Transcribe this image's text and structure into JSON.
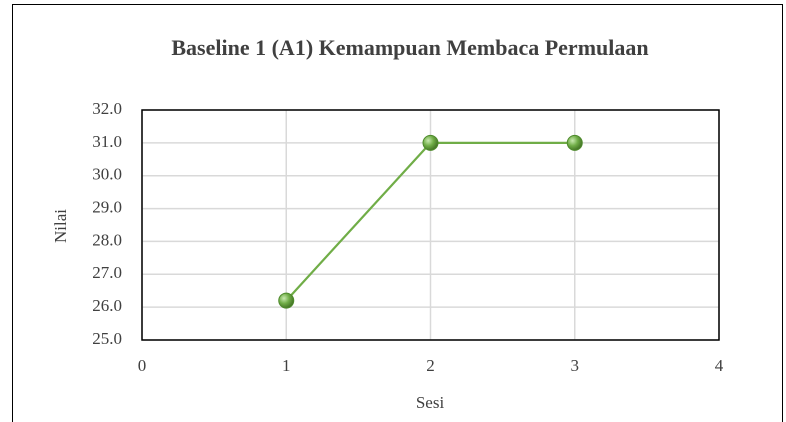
{
  "chart_data": {
    "type": "line",
    "title": "Baseline 1 (A1) Kemampuan Membaca Permulaan",
    "x": [
      1,
      2,
      3
    ],
    "values": [
      26.2,
      31.0,
      31.0
    ],
    "color": "#70ad47",
    "xlabel": "Sesi",
    "ylabel": "Nilai",
    "xlim": [
      0,
      4
    ],
    "xticks": [
      0,
      1,
      2,
      3,
      4
    ],
    "ylim": [
      25,
      32
    ],
    "yticks": [
      {
        "value": 25,
        "label": "25.0"
      },
      {
        "value": 26,
        "label": "26.0"
      },
      {
        "value": 27,
        "label": "27.0"
      },
      {
        "value": 28,
        "label": "28.0"
      },
      {
        "value": 29,
        "label": "29.0"
      },
      {
        "value": 30,
        "label": "30.0"
      },
      {
        "value": 31,
        "label": "31.0"
      },
      {
        "value": 32,
        "label": "32.0"
      }
    ],
    "grid": true
  }
}
